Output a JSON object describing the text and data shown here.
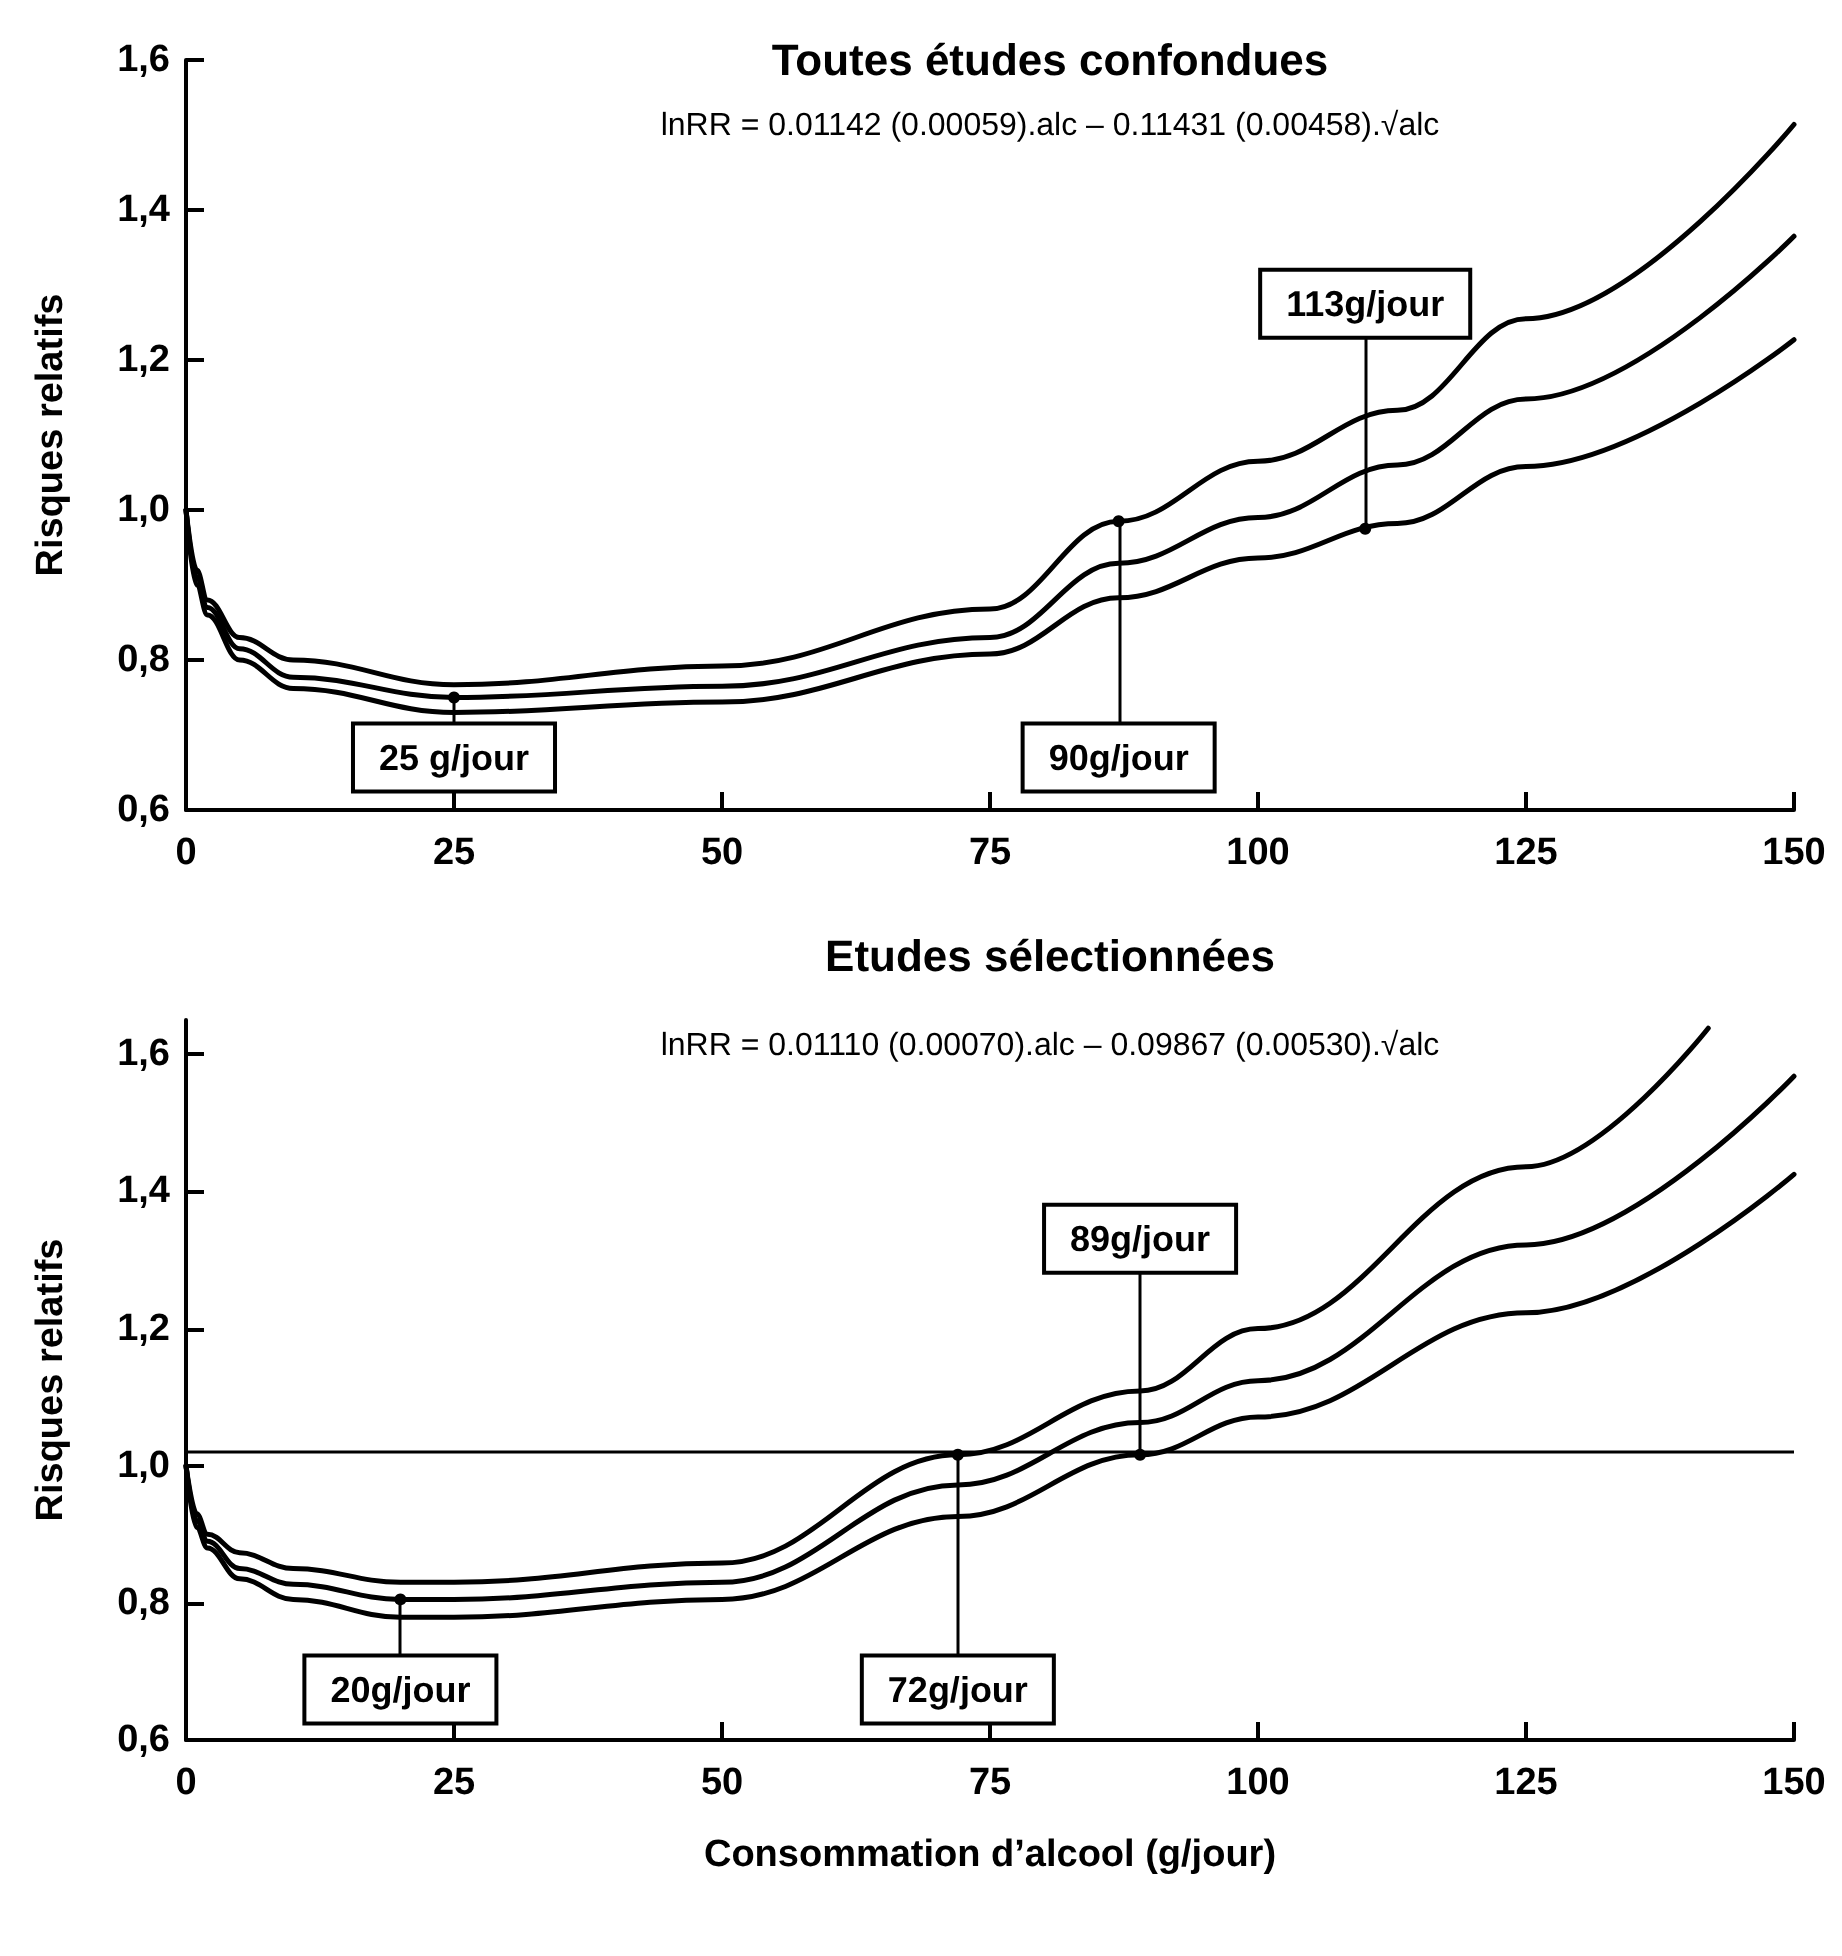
{
  "chart_data": [
    {
      "type": "line",
      "title": "Toutes études confondues",
      "subtitle": "lnRR = 0.01142 (0.00059).alc – 0.11431 (0.00458).√alc",
      "ylabel": "Risques relatifs",
      "line_style": "solid",
      "x": [
        0,
        1,
        2,
        5,
        10,
        25,
        50,
        75,
        87,
        100,
        113,
        125,
        150
      ],
      "series": [
        {
          "color": "#000000",
          "values": [
            1.0,
            0.92,
            0.88,
            0.83,
            0.8,
            0.767,
            0.792,
            0.868,
            0.985,
            1.065,
            1.133,
            1.255,
            1.514
          ]
        },
        {
          "color": "#000000",
          "values": [
            1.0,
            0.91,
            0.87,
            0.815,
            0.777,
            0.75,
            0.765,
            0.83,
            0.929,
            0.99,
            1.06,
            1.148,
            1.365
          ]
        },
        {
          "color": "#000000",
          "values": [
            1.0,
            0.9,
            0.86,
            0.8,
            0.762,
            0.73,
            0.744,
            0.808,
            0.883,
            0.936,
            0.982,
            1.058,
            1.227
          ]
        }
      ],
      "xlim": [
        0,
        150
      ],
      "xticks": [
        0,
        25,
        50,
        75,
        100,
        125,
        150
      ],
      "ylim": [
        0.6,
        1.6
      ],
      "yticks": [
        {
          "value": 0.6,
          "label": "0,6"
        },
        {
          "value": 0.8,
          "label": "0,8"
        },
        {
          "value": 1.0,
          "label": "1,0"
        },
        {
          "value": 1.2,
          "label": "1,2"
        },
        {
          "value": 1.4,
          "label": "1,4"
        },
        {
          "value": 1.6,
          "label": "1,6"
        }
      ],
      "annotations": [
        {
          "text": "25 g/jour",
          "x": 25,
          "y": 0.75
        },
        {
          "text": "90g/jour",
          "x": 87,
          "y": 0.985
        },
        {
          "text": "113g/jour",
          "x": 110,
          "y": 0.975
        }
      ]
    },
    {
      "type": "line",
      "title": "Etudes sélectionnées",
      "subtitle": "lnRR = 0.01110 (0.00070).alc – 0.09867 (0.00530).√alc",
      "ylabel": "Risques relatifs",
      "xlabel": "Consommation d’alcool (g/jour)",
      "line_style": "solid",
      "series": [
        {
          "color": "#000000",
          "x": [
            0,
            1,
            2,
            5,
            10,
            20,
            25,
            50,
            72,
            89,
            100,
            125,
            142
          ],
          "values": [
            1.0,
            0.93,
            0.9,
            0.873,
            0.85,
            0.83,
            0.83,
            0.858,
            1.016,
            1.109,
            1.2,
            1.436,
            1.638
          ]
        },
        {
          "color": "#000000",
          "x": [
            0,
            1,
            2,
            5,
            10,
            20,
            25,
            50,
            72,
            89,
            100,
            125,
            150
          ],
          "values": [
            1.0,
            0.92,
            0.89,
            0.85,
            0.827,
            0.805,
            0.805,
            0.83,
            0.972,
            1.063,
            1.124,
            1.322,
            1.568
          ]
        },
        {
          "color": "#000000",
          "x": [
            0,
            1,
            2,
            5,
            10,
            20,
            25,
            50,
            72,
            89,
            100,
            125,
            150
          ],
          "values": [
            1.0,
            0.91,
            0.88,
            0.835,
            0.805,
            0.779,
            0.779,
            0.805,
            0.926,
            1.016,
            1.071,
            1.223,
            1.425
          ]
        }
      ],
      "xlim": [
        0,
        150
      ],
      "xticks": [
        0,
        25,
        50,
        75,
        100,
        125,
        150
      ],
      "ylim": [
        0.6,
        1.65
      ],
      "yticks": [
        {
          "value": 0.6,
          "label": "0,6"
        },
        {
          "value": 0.8,
          "label": "0,8"
        },
        {
          "value": 1.0,
          "label": "1,0"
        },
        {
          "value": 1.2,
          "label": "1,2"
        },
        {
          "value": 1.4,
          "label": "1,4"
        },
        {
          "value": 1.6,
          "label": "1,6"
        }
      ],
      "ref_lines": [
        {
          "axis": "y",
          "value": 1.02
        }
      ],
      "annotations": [
        {
          "text": "20g/jour",
          "x": 20,
          "y": 0.805
        },
        {
          "text": "72g/jour",
          "x": 72,
          "y": 1.016
        },
        {
          "text": "89g/jour",
          "x": 89,
          "y": 1.016
        }
      ]
    }
  ]
}
